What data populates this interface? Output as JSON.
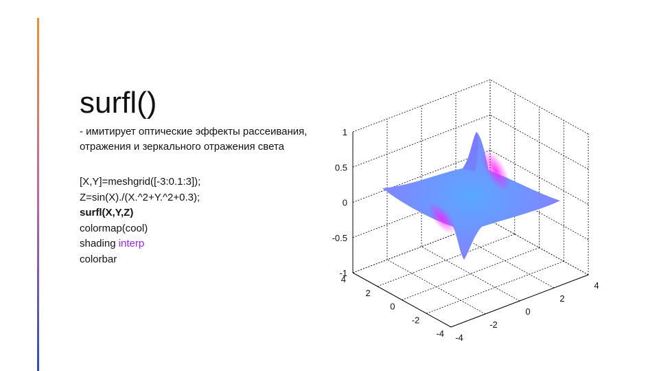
{
  "slide": {
    "title": "surfl()",
    "description": "- имитирует оптические эффекты рассеивания, отражения и зеркального отражения света",
    "code": {
      "line1": "[X,Y]=meshgrid([-3:0.1:3]);",
      "line2": "Z=sin(X)./(X.^2+Y.^2+0.3);",
      "line3": "surfl(X,Y,Z)",
      "line4": "colormap(cool)",
      "line5_prefix": "shading ",
      "line5_keyword": "interp",
      "line6": "colorbar"
    }
  },
  "colors": {
    "accent_top": "#f0902a",
    "accent_bottom": "#2c4fb8",
    "keyword": "#a020f0",
    "surface_base": "#5aa8ff",
    "surface_highlight": "#ff1aff"
  },
  "chart_data": {
    "type": "surface",
    "function": "Z=sin(X)./(X.^2+Y.^2+0.3)",
    "x_range": [
      -3,
      3
    ],
    "y_range": [
      -3,
      3
    ],
    "step": 0.1,
    "zlim": [
      -1,
      1
    ],
    "xlim": [
      -4,
      4
    ],
    "ylim": [
      -4,
      4
    ],
    "z_ticks": [
      "1",
      "0.5",
      "0",
      "-0.5",
      "-1"
    ],
    "x_ticks": [
      "4",
      "2",
      "0",
      "-2",
      "-4"
    ],
    "y_ticks": [
      "-4",
      "-2",
      "0",
      "2",
      "4"
    ],
    "colormap": "cool",
    "grid": true
  }
}
